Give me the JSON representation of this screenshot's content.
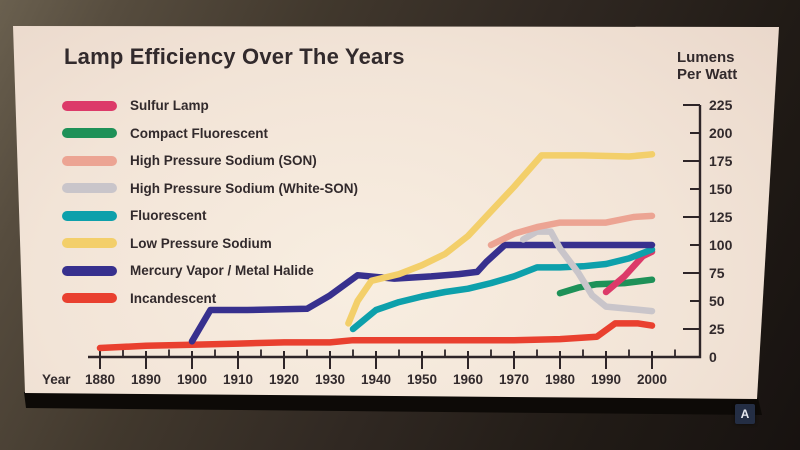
{
  "title": "Lamp Efficiency Over The Years",
  "badge": "A",
  "colors": {
    "panel": "#f2e4d7",
    "wall": "#3c342a",
    "text": "#322a2c",
    "axis": "#2e2528",
    "badge_bg": "#242e44",
    "badge_text": "#e6e8ee"
  },
  "y_axis": {
    "label_line1": "Lumens",
    "label_line2": "Per Watt",
    "ticks": [
      225,
      200,
      175,
      150,
      125,
      100,
      75,
      50,
      25,
      0
    ]
  },
  "x_axis": {
    "label": "Year",
    "major_ticks": [
      1880,
      1890,
      1900,
      1910,
      1920,
      1930,
      1940,
      1950,
      1960,
      1970,
      1980,
      1990,
      2000
    ],
    "minor_ticks": [
      1885,
      1895,
      1905,
      1915,
      1925,
      1935,
      1945,
      1955,
      1965,
      1975,
      1985,
      1995,
      2005
    ]
  },
  "chart_data": {
    "type": "line",
    "title": "Lamp Efficiency Over The Years",
    "xlabel": "Year",
    "ylabel": "Lumens Per Watt",
    "xlim": [
      1880,
      2005
    ],
    "ylim": [
      0,
      225
    ],
    "x_tick_step": 10,
    "y_tick_step": 25,
    "grid": false,
    "legend_position": "upper-left",
    "series": [
      {
        "name": "Sulfur Lamp",
        "color": "#dc3a69",
        "x": [
          1990,
          1994,
          1998,
          2000
        ],
        "y": [
          58,
          72,
          90,
          94
        ]
      },
      {
        "name": "Compact Fluorescent",
        "color": "#1e9158",
        "x": [
          1980,
          1984,
          1988,
          1994,
          2000
        ],
        "y": [
          57,
          62,
          65,
          66,
          69
        ]
      },
      {
        "name": "High Pressure Sodium (SON)",
        "color": "#eca493",
        "x": [
          1965,
          1970,
          1975,
          1980,
          1990,
          1996,
          2000
        ],
        "y": [
          100,
          110,
          116,
          120,
          120,
          125,
          126
        ]
      },
      {
        "name": "High Pressure Sodium (White-SON)",
        "color": "#c9c5ca",
        "x": [
          1972,
          1975,
          1978,
          1980,
          1984,
          1987,
          1990,
          1995,
          2000
        ],
        "y": [
          105,
          112,
          112,
          97,
          75,
          55,
          45,
          43,
          41
        ]
      },
      {
        "name": "Fluorescent",
        "color": "#0da0ab",
        "x": [
          1935,
          1940,
          1945,
          1950,
          1955,
          1960,
          1965,
          1970,
          1975,
          1980,
          1985,
          1990,
          1995,
          2000
        ],
        "y": [
          25,
          42,
          49,
          54,
          58,
          61,
          66,
          72,
          80,
          80,
          81,
          83,
          88,
          96
        ]
      },
      {
        "name": "Low Pressure Sodium",
        "color": "#f3cf6a",
        "x": [
          1934,
          1936,
          1939,
          1945,
          1950,
          1955,
          1960,
          1965,
          1970,
          1976,
          1985,
          1995,
          2000
        ],
        "y": [
          30,
          50,
          68,
          74,
          82,
          92,
          108,
          130,
          152,
          180,
          180,
          179,
          181
        ]
      },
      {
        "name": "Mercury Vapor / Metal Halide",
        "color": "#37308e",
        "x": [
          1900,
          1904,
          1912,
          1925,
          1930,
          1936,
          1944,
          1952,
          1958,
          1962,
          1964,
          1968,
          1975,
          1985,
          2000
        ],
        "y": [
          14,
          42,
          42,
          43,
          55,
          73,
          70,
          72,
          74,
          76,
          85,
          100,
          100,
          100,
          100
        ]
      },
      {
        "name": "Incandescent",
        "color": "#e9402f",
        "x": [
          1880,
          1890,
          1900,
          1910,
          1920,
          1930,
          1935,
          1950,
          1970,
          1980,
          1988,
          1992,
          1997,
          2000
        ],
        "y": [
          8,
          10,
          11,
          12,
          13,
          13,
          15,
          15,
          15,
          16,
          18,
          30,
          30,
          28
        ]
      }
    ],
    "draw_order": [
      7,
      1,
      0,
      4,
      6,
      3,
      2,
      5
    ]
  }
}
